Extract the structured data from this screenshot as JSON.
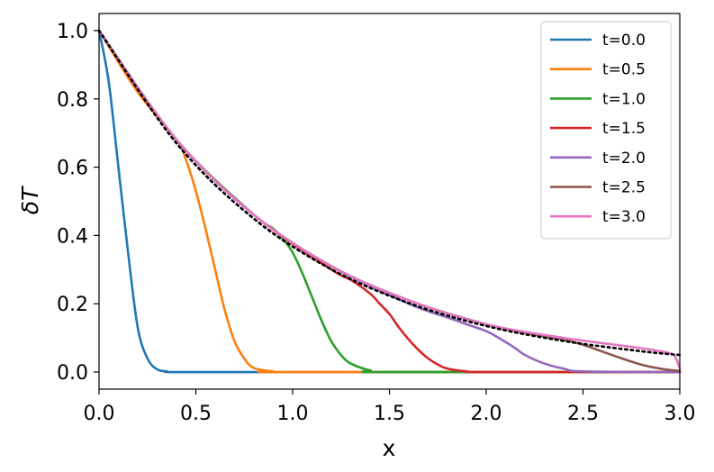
{
  "chart_data": {
    "type": "line",
    "xlabel": "x",
    "ylabel": "δT",
    "xlim": [
      0.0,
      3.0
    ],
    "ylim": [
      -0.05,
      1.05
    ],
    "xticks": [
      "0.0",
      "0.5",
      "1.0",
      "1.5",
      "2.0",
      "2.5",
      "3.0"
    ],
    "yticks": [
      "0.0",
      "0.2",
      "0.4",
      "0.6",
      "0.8",
      "1.0"
    ],
    "grid": false,
    "legend_position": "top-right",
    "series": [
      {
        "name": "t=0.0",
        "color": "#1f77b4",
        "x": [
          0.0,
          0.05,
          0.1,
          0.15,
          0.2,
          0.25,
          0.3,
          0.35,
          0.4,
          1.0,
          2.0,
          3.0
        ],
        "y": [
          1.0,
          0.85,
          0.6,
          0.35,
          0.13,
          0.04,
          0.008,
          0.002,
          0.0,
          0.0,
          0.0,
          0.0
        ]
      },
      {
        "name": "t=0.5",
        "color": "#ff7f0e",
        "x": [
          0.0,
          0.2,
          0.4,
          0.45,
          0.5,
          0.55,
          0.6,
          0.65,
          0.7,
          0.75,
          0.8,
          0.9,
          1.0,
          3.0
        ],
        "y": [
          1.0,
          0.82,
          0.68,
          0.62,
          0.53,
          0.42,
          0.3,
          0.18,
          0.09,
          0.04,
          0.012,
          0.002,
          0.0,
          0.0
        ]
      },
      {
        "name": "t=1.0",
        "color": "#2ca02c",
        "x": [
          0.0,
          0.4,
          0.8,
          0.9,
          0.95,
          1.0,
          1.05,
          1.1,
          1.15,
          1.2,
          1.25,
          1.3,
          1.4,
          1.5,
          3.0
        ],
        "y": [
          1.0,
          0.68,
          0.46,
          0.42,
          0.39,
          0.35,
          0.29,
          0.22,
          0.15,
          0.09,
          0.05,
          0.025,
          0.005,
          0.0,
          0.0
        ]
      },
      {
        "name": "t=1.5",
        "color": "#d62728",
        "x": [
          0.0,
          0.4,
          0.8,
          1.2,
          1.3,
          1.4,
          1.45,
          1.5,
          1.55,
          1.6,
          1.65,
          1.7,
          1.75,
          1.8,
          1.9,
          2.0,
          3.0
        ],
        "y": [
          1.0,
          0.68,
          0.46,
          0.3,
          0.27,
          0.23,
          0.2,
          0.17,
          0.13,
          0.095,
          0.065,
          0.04,
          0.022,
          0.01,
          0.002,
          0.0,
          0.0
        ]
      },
      {
        "name": "t=2.0",
        "color": "#9467bd",
        "x": [
          0.0,
          0.4,
          0.8,
          1.2,
          1.6,
          1.8,
          1.9,
          2.0,
          2.05,
          2.1,
          2.15,
          2.2,
          2.3,
          2.4,
          2.5,
          3.0
        ],
        "y": [
          1.0,
          0.68,
          0.46,
          0.31,
          0.2,
          0.16,
          0.14,
          0.12,
          0.105,
          0.088,
          0.07,
          0.05,
          0.025,
          0.01,
          0.002,
          0.0
        ]
      },
      {
        "name": "t=2.5",
        "color": "#8c564b",
        "x": [
          0.0,
          0.4,
          0.8,
          1.2,
          1.6,
          2.0,
          2.3,
          2.4,
          2.5,
          2.6,
          2.7,
          2.8,
          2.9,
          3.0
        ],
        "y": [
          1.0,
          0.68,
          0.46,
          0.31,
          0.21,
          0.14,
          0.105,
          0.095,
          0.08,
          0.06,
          0.04,
          0.022,
          0.01,
          0.003
        ]
      },
      {
        "name": "t=3.0",
        "color": "#e377c2",
        "x": [
          0.0,
          0.4,
          0.8,
          1.2,
          1.6,
          2.0,
          2.4,
          2.8,
          2.95,
          2.98,
          3.0
        ],
        "y": [
          1.0,
          0.68,
          0.46,
          0.31,
          0.21,
          0.14,
          0.1,
          0.07,
          0.055,
          0.04,
          0.01
        ]
      }
    ],
    "reference_curve": {
      "style": "dotted",
      "color": "#000000",
      "x": [
        0.0,
        0.4,
        0.8,
        1.2,
        1.6,
        2.0,
        2.4,
        2.8,
        3.0
      ],
      "y": [
        1.0,
        0.67,
        0.449,
        0.301,
        0.202,
        0.135,
        0.091,
        0.061,
        0.05
      ]
    }
  }
}
